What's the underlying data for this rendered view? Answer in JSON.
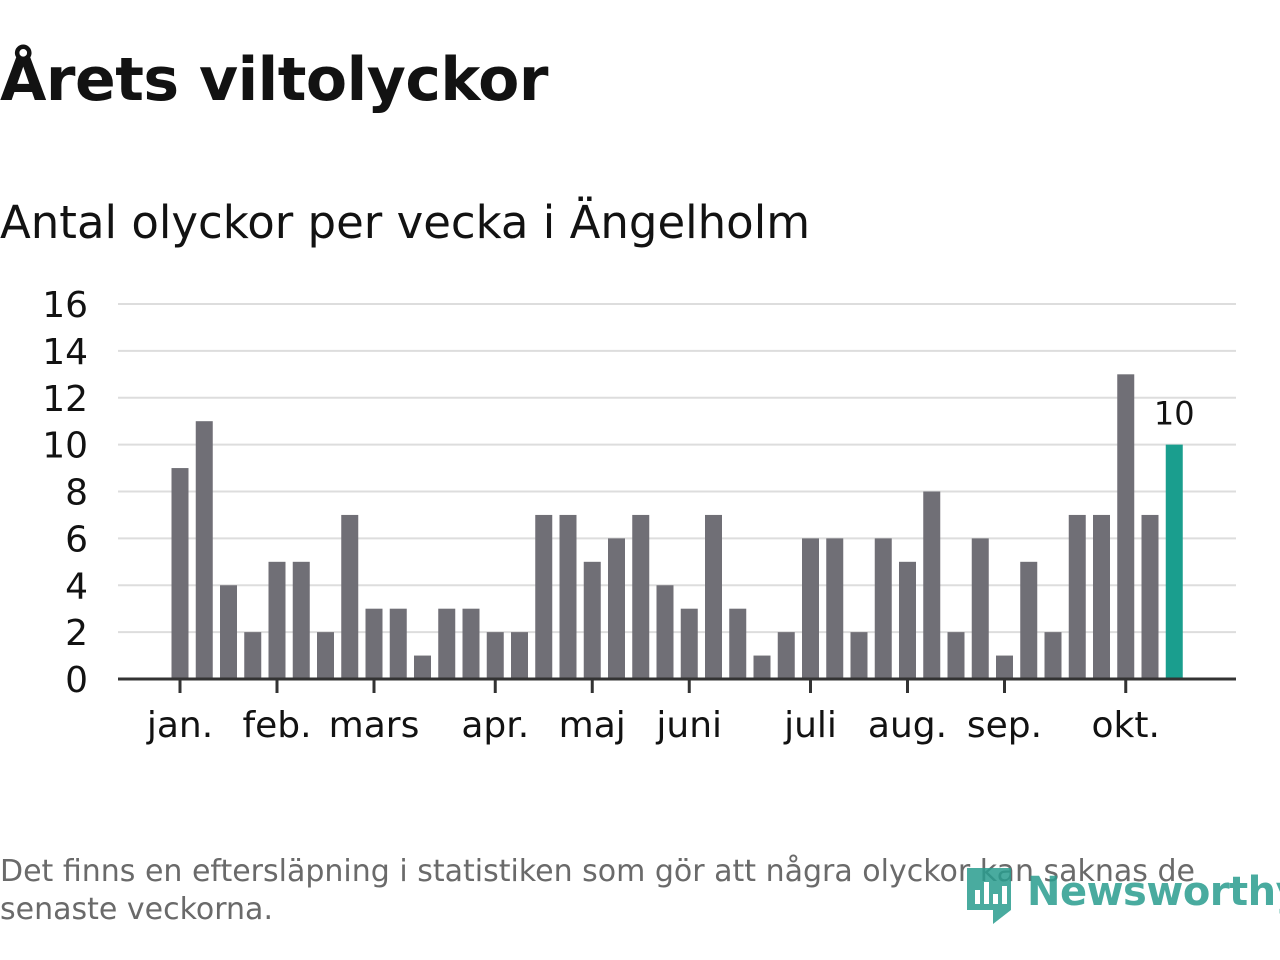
{
  "title": "Årets viltolyckor",
  "subtitle": "Antal olyckor per vecka i Ängelholm",
  "footnote": "Det finns en eftersläpning i statistiken som gör att några olyckor kan saknas de senaste veckorna.",
  "brand": {
    "name": "Newsworthy",
    "icon": "newsworthy-logo-icon"
  },
  "colors": {
    "bar": "#706f76",
    "highlight": "#1a9e8e",
    "grid": "#dddddd",
    "axis": "#333333",
    "text": "#121212",
    "brand": "#2a9d8f"
  },
  "chart_data": {
    "type": "bar",
    "ylim": [
      0,
      16
    ],
    "yticks": [
      "0",
      "2",
      "4",
      "6",
      "8",
      "10",
      "12",
      "14",
      "16"
    ],
    "grid": true,
    "values": [
      9,
      11,
      4,
      2,
      5,
      5,
      2,
      7,
      3,
      3,
      1,
      3,
      3,
      2,
      2,
      7,
      7,
      5,
      6,
      7,
      4,
      3,
      7,
      3,
      1,
      2,
      6,
      6,
      2,
      6,
      5,
      8,
      2,
      6,
      1,
      5,
      2,
      7,
      7,
      13,
      7,
      10
    ],
    "highlight_index": 41,
    "data_label": "10",
    "month_labels": [
      {
        "label": "jan.",
        "week": 1
      },
      {
        "label": "feb.",
        "week": 5
      },
      {
        "label": "mars",
        "week": 9
      },
      {
        "label": "apr.",
        "week": 14
      },
      {
        "label": "maj",
        "week": 18
      },
      {
        "label": "juni",
        "week": 22
      },
      {
        "label": "juli",
        "week": 27
      },
      {
        "label": "aug.",
        "week": 31
      },
      {
        "label": "sep.",
        "week": 35
      },
      {
        "label": "okt.",
        "week": 40
      }
    ]
  }
}
